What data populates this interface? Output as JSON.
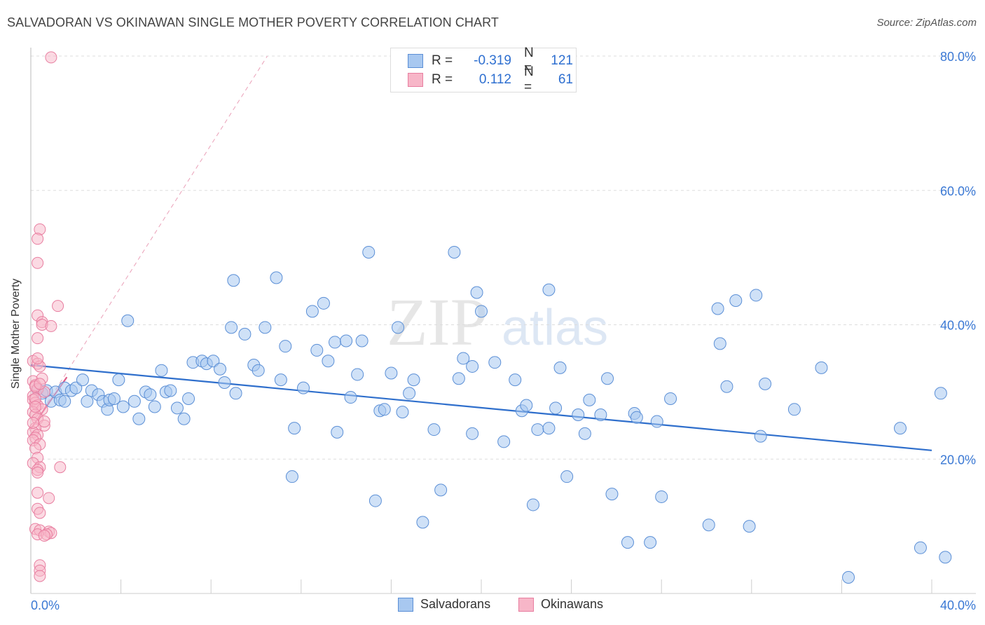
{
  "title": "SALVADORAN VS OKINAWAN SINGLE MOTHER POVERTY CORRELATION CHART",
  "source": "Source: ZipAtlas.com",
  "watermark": {
    "zip": "ZIP",
    "atlas": "atlas"
  },
  "colors": {
    "salvadoran_fill": "#a8c8f0",
    "salvadoran_stroke": "#5b8fd6",
    "salvadoran_line": "#2f6fcc",
    "okinawan_fill": "#f7b6c8",
    "okinawan_stroke": "#e87ea0",
    "okinawan_line": "#e05a88",
    "tick_label": "#3a78d4",
    "grid": "#dddddd"
  },
  "legend": {
    "rows": [
      {
        "r_label": "R =",
        "r_value": "-0.319",
        "n_label": "N =",
        "n_value": "121"
      },
      {
        "r_label": "R =",
        "r_value": "0.112",
        "n_label": "N =",
        "n_value": "61"
      }
    ]
  },
  "bottom_legend": {
    "salvadorans": "Salvadorans",
    "okinawans": "Okinawans"
  },
  "chart_data": {
    "type": "scatter",
    "title": "SALVADORAN VS OKINAWAN SINGLE MOTHER POVERTY CORRELATION CHART",
    "xlabel": "",
    "ylabel": "Single Mother Poverty",
    "xlim": [
      0,
      40
    ],
    "ylim": [
      0,
      80
    ],
    "x_tick_labels": [
      "0.0%",
      "40.0%"
    ],
    "y_ticks": [
      20,
      40,
      60,
      80
    ],
    "y_tick_labels": [
      "20.0%",
      "40.0%",
      "60.0%",
      "80.0%"
    ],
    "grid": true,
    "legend_position": "top-center",
    "series": [
      {
        "name": "Salvadorans",
        "r": -0.319,
        "n": 121,
        "trend": {
          "x": [
            0,
            40
          ],
          "y": [
            34.0,
            21.3
          ]
        },
        "points": [
          [
            0.3,
            30.4
          ],
          [
            0.5,
            29.8
          ],
          [
            0.7,
            30.2
          ],
          [
            0.9,
            28.6
          ],
          [
            1.1,
            30.0
          ],
          [
            1.3,
            28.8
          ],
          [
            1.5,
            30.6
          ],
          [
            1.8,
            30.2
          ],
          [
            2.0,
            30.6
          ],
          [
            2.3,
            31.8
          ],
          [
            2.5,
            28.6
          ],
          [
            2.7,
            30.2
          ],
          [
            3.0,
            29.6
          ],
          [
            3.2,
            28.6
          ],
          [
            3.4,
            27.4
          ],
          [
            3.5,
            28.8
          ],
          [
            3.7,
            29.0
          ],
          [
            3.9,
            31.8
          ],
          [
            4.1,
            27.8
          ],
          [
            4.3,
            40.6
          ],
          [
            4.6,
            28.6
          ],
          [
            4.8,
            26.0
          ],
          [
            5.1,
            30.0
          ],
          [
            5.3,
            29.6
          ],
          [
            5.5,
            27.8
          ],
          [
            5.8,
            33.2
          ],
          [
            6.0,
            30.0
          ],
          [
            6.2,
            30.2
          ],
          [
            6.5,
            27.6
          ],
          [
            6.8,
            26.0
          ],
          [
            7.0,
            29.0
          ],
          [
            7.2,
            34.4
          ],
          [
            7.6,
            34.6
          ],
          [
            7.8,
            34.2
          ],
          [
            8.1,
            34.6
          ],
          [
            8.4,
            33.4
          ],
          [
            8.6,
            31.4
          ],
          [
            8.9,
            39.6
          ],
          [
            9.1,
            29.8
          ],
          [
            9.5,
            38.6
          ],
          [
            9.0,
            46.6
          ],
          [
            9.9,
            34.0
          ],
          [
            10.1,
            33.2
          ],
          [
            10.4,
            39.6
          ],
          [
            10.9,
            47.0
          ],
          [
            11.1,
            31.8
          ],
          [
            11.3,
            36.8
          ],
          [
            11.7,
            24.6
          ],
          [
            11.6,
            17.4
          ],
          [
            12.1,
            30.6
          ],
          [
            12.5,
            42.0
          ],
          [
            12.7,
            36.2
          ],
          [
            13.0,
            43.2
          ],
          [
            13.2,
            34.6
          ],
          [
            13.5,
            37.4
          ],
          [
            13.6,
            24.0
          ],
          [
            14.0,
            37.6
          ],
          [
            14.2,
            29.2
          ],
          [
            14.5,
            32.6
          ],
          [
            14.7,
            37.6
          ],
          [
            15.0,
            50.8
          ],
          [
            15.3,
            13.8
          ],
          [
            15.5,
            27.2
          ],
          [
            15.7,
            27.4
          ],
          [
            16.0,
            32.8
          ],
          [
            16.3,
            39.6
          ],
          [
            16.5,
            27.0
          ],
          [
            16.8,
            29.8
          ],
          [
            17.0,
            31.8
          ],
          [
            17.4,
            10.6
          ],
          [
            17.9,
            24.4
          ],
          [
            18.2,
            15.4
          ],
          [
            18.8,
            50.8
          ],
          [
            19.0,
            32.0
          ],
          [
            19.2,
            35.0
          ],
          [
            19.6,
            33.8
          ],
          [
            19.6,
            23.8
          ],
          [
            19.8,
            44.8
          ],
          [
            20.0,
            42.0
          ],
          [
            20.6,
            34.4
          ],
          [
            21.0,
            22.6
          ],
          [
            21.5,
            31.8
          ],
          [
            21.8,
            27.2
          ],
          [
            22.0,
            28.0
          ],
          [
            22.3,
            13.2
          ],
          [
            22.5,
            24.4
          ],
          [
            23.0,
            45.2
          ],
          [
            23.0,
            24.6
          ],
          [
            23.3,
            27.6
          ],
          [
            23.5,
            33.6
          ],
          [
            23.8,
            17.4
          ],
          [
            24.3,
            26.6
          ],
          [
            24.6,
            23.8
          ],
          [
            24.8,
            28.8
          ],
          [
            25.3,
            26.6
          ],
          [
            25.6,
            32.0
          ],
          [
            25.8,
            14.8
          ],
          [
            26.5,
            7.6
          ],
          [
            26.8,
            26.8
          ],
          [
            26.9,
            26.2
          ],
          [
            27.5,
            7.6
          ],
          [
            27.8,
            25.6
          ],
          [
            28.0,
            14.4
          ],
          [
            28.4,
            29.0
          ],
          [
            30.1,
            10.2
          ],
          [
            30.5,
            42.4
          ],
          [
            30.6,
            37.2
          ],
          [
            30.9,
            30.8
          ],
          [
            31.3,
            43.6
          ],
          [
            31.9,
            10.0
          ],
          [
            32.2,
            44.4
          ],
          [
            32.4,
            23.4
          ],
          [
            32.6,
            31.2
          ],
          [
            33.9,
            27.4
          ],
          [
            35.1,
            33.6
          ],
          [
            36.3,
            2.4
          ],
          [
            38.6,
            24.6
          ],
          [
            39.5,
            6.8
          ],
          [
            40.4,
            29.8
          ],
          [
            40.6,
            5.4
          ],
          [
            1.5,
            28.6
          ]
        ]
      },
      {
        "name": "Okinawans",
        "r": 0.112,
        "n": 61,
        "trend": {
          "x": [
            0,
            1.6
          ],
          "y": [
            24.5,
            32.2
          ]
        },
        "trend_extension": {
          "x": [
            0,
            10.5
          ],
          "y": [
            24.5,
            80
          ]
        },
        "points": [
          [
            0.9,
            79.8
          ],
          [
            0.4,
            54.2
          ],
          [
            0.3,
            52.8
          ],
          [
            0.3,
            49.2
          ],
          [
            1.2,
            42.8
          ],
          [
            0.3,
            41.4
          ],
          [
            0.5,
            40.4
          ],
          [
            0.5,
            40.0
          ],
          [
            0.9,
            39.8
          ],
          [
            0.3,
            38.0
          ],
          [
            0.1,
            34.6
          ],
          [
            0.3,
            34.2
          ],
          [
            0.4,
            33.8
          ],
          [
            0.1,
            31.6
          ],
          [
            0.2,
            31.0
          ],
          [
            0.3,
            30.4
          ],
          [
            0.6,
            30.0
          ],
          [
            0.1,
            29.4
          ],
          [
            0.1,
            28.8
          ],
          [
            0.2,
            28.4
          ],
          [
            0.3,
            28.0
          ],
          [
            0.5,
            27.4
          ],
          [
            0.1,
            27.0
          ],
          [
            0.2,
            26.6
          ],
          [
            0.3,
            26.0
          ],
          [
            0.6,
            25.0
          ],
          [
            0.2,
            24.6
          ],
          [
            0.1,
            24.0
          ],
          [
            0.3,
            23.6
          ],
          [
            0.2,
            23.2
          ],
          [
            0.1,
            22.8
          ],
          [
            0.4,
            22.2
          ],
          [
            0.2,
            21.6
          ],
          [
            0.3,
            20.2
          ],
          [
            0.1,
            19.4
          ],
          [
            0.4,
            18.8
          ],
          [
            1.3,
            18.8
          ],
          [
            0.3,
            18.4
          ],
          [
            0.3,
            18.0
          ],
          [
            0.3,
            15.0
          ],
          [
            0.8,
            14.2
          ],
          [
            0.3,
            12.6
          ],
          [
            0.4,
            12.0
          ],
          [
            0.2,
            9.6
          ],
          [
            0.4,
            9.4
          ],
          [
            0.8,
            9.2
          ],
          [
            0.9,
            9.0
          ],
          [
            0.3,
            8.8
          ],
          [
            0.7,
            8.8
          ],
          [
            0.6,
            8.6
          ],
          [
            0.4,
            4.2
          ],
          [
            0.4,
            3.4
          ],
          [
            0.4,
            2.6
          ],
          [
            0.2,
            30.8
          ],
          [
            0.1,
            25.4
          ],
          [
            0.2,
            29.0
          ],
          [
            0.5,
            32.0
          ],
          [
            0.3,
            35.0
          ],
          [
            0.2,
            27.8
          ],
          [
            0.6,
            25.6
          ],
          [
            0.4,
            31.2
          ]
        ]
      }
    ]
  }
}
